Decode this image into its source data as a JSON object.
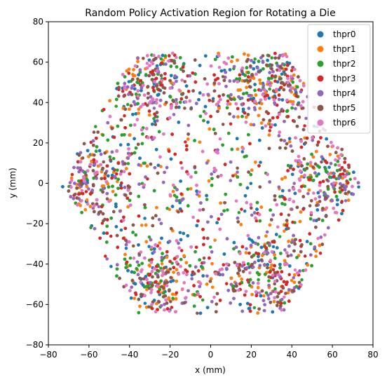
{
  "chart_data": {
    "type": "scatter",
    "title": "Random Policy Activation Region for Rotating a Die",
    "xlabel": "x (mm)",
    "ylabel": "y (mm)",
    "xlim": [
      -80,
      80
    ],
    "ylim": [
      -80,
      80
    ],
    "xticks": [
      "−80",
      "−60",
      "−40",
      "−20",
      "0",
      "20",
      "40",
      "60",
      "80"
    ],
    "yticks": [
      "−80",
      "−60",
      "−40",
      "−20",
      "0",
      "20",
      "40",
      "60",
      "80"
    ],
    "grid": false,
    "legend_position": "top-right",
    "region": {
      "shape": "hexagonal ring (six dense lobes, sparser center)",
      "x_extent": [
        -72,
        72
      ],
      "y_extent": [
        -68,
        67
      ],
      "dense_lobe_centers": [
        [
          -62,
          2
        ],
        [
          -30,
          52
        ],
        [
          28,
          52
        ],
        [
          62,
          2
        ],
        [
          30,
          -48
        ],
        [
          -28,
          -50
        ]
      ]
    },
    "series": [
      {
        "name": "thpr0",
        "color": "#1f77b4"
      },
      {
        "name": "thpr1",
        "color": "#ff7f0e"
      },
      {
        "name": "thpr2",
        "color": "#2ca02c"
      },
      {
        "name": "thpr3",
        "color": "#d62728"
      },
      {
        "name": "thpr4",
        "color": "#9467bd"
      },
      {
        "name": "thpr5",
        "color": "#8c564b"
      },
      {
        "name": "thpr6",
        "color": "#e377c2"
      }
    ]
  }
}
